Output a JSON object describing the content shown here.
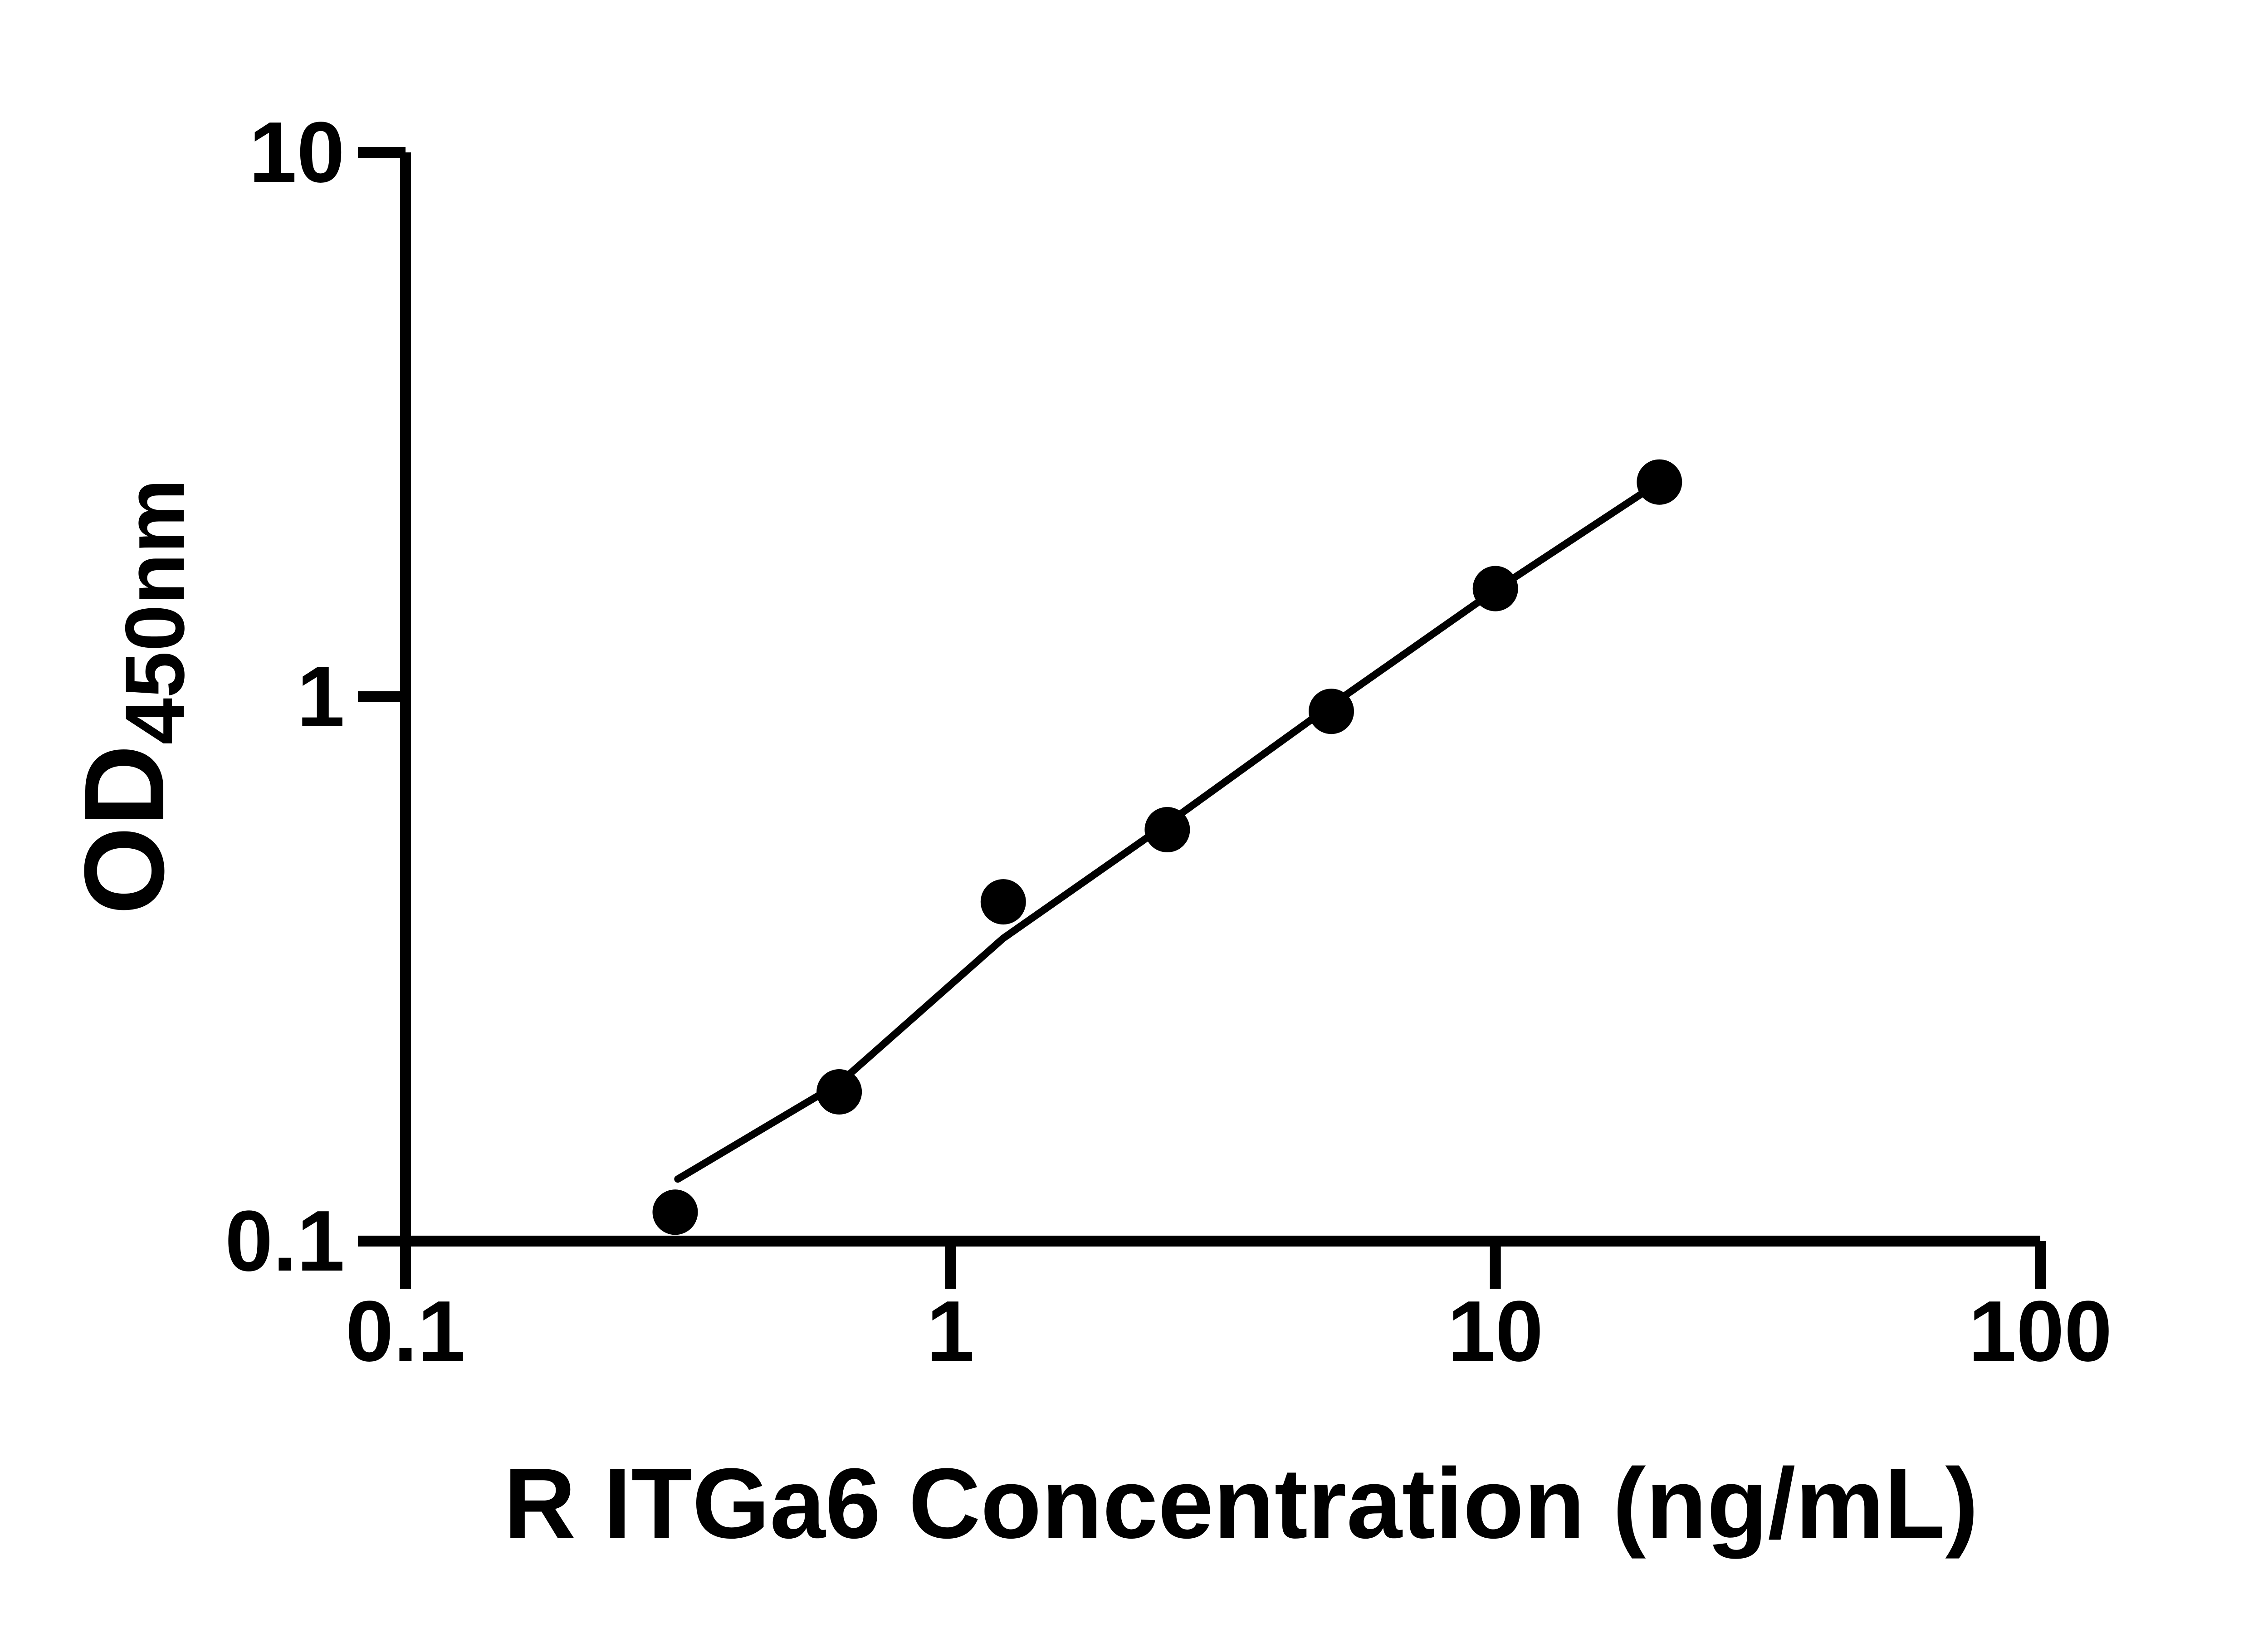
{
  "chart_data": {
    "type": "scatter",
    "title": "",
    "xlabel": "R ITGa6 Concentration (ng/mL)",
    "ylabel": {
      "main": "OD",
      "subscript": "450nm"
    },
    "x_scale": "log",
    "y_scale": "log",
    "xlim": [
      0.1,
      100
    ],
    "ylim": [
      0.1,
      10
    ],
    "grid": false,
    "legend": null,
    "x_tick_values": [
      0.1,
      1,
      10,
      100
    ],
    "x_tick_labels": [
      "0.1",
      "1",
      "10",
      "100"
    ],
    "y_tick_values": [
      0.1,
      1,
      10
    ],
    "y_tick_labels": [
      "0.1",
      "1",
      "10"
    ],
    "series": [
      {
        "name": "standard-curve-points",
        "marker": "filled-circle",
        "x": [
          0.3125,
          0.625,
          1.25,
          2.5,
          5,
          10,
          20
        ],
        "y": [
          0.113,
          0.188,
          0.42,
          0.57,
          0.94,
          1.58,
          2.48
        ]
      }
    ],
    "fit_line": {
      "x": [
        0.316,
        0.625,
        1.25,
        2.5,
        5,
        10,
        20
      ],
      "y": [
        0.13,
        0.195,
        0.36,
        0.585,
        0.965,
        1.57,
        2.48
      ]
    },
    "colors": {
      "foreground": "#000000",
      "background": "#ffffff"
    }
  }
}
